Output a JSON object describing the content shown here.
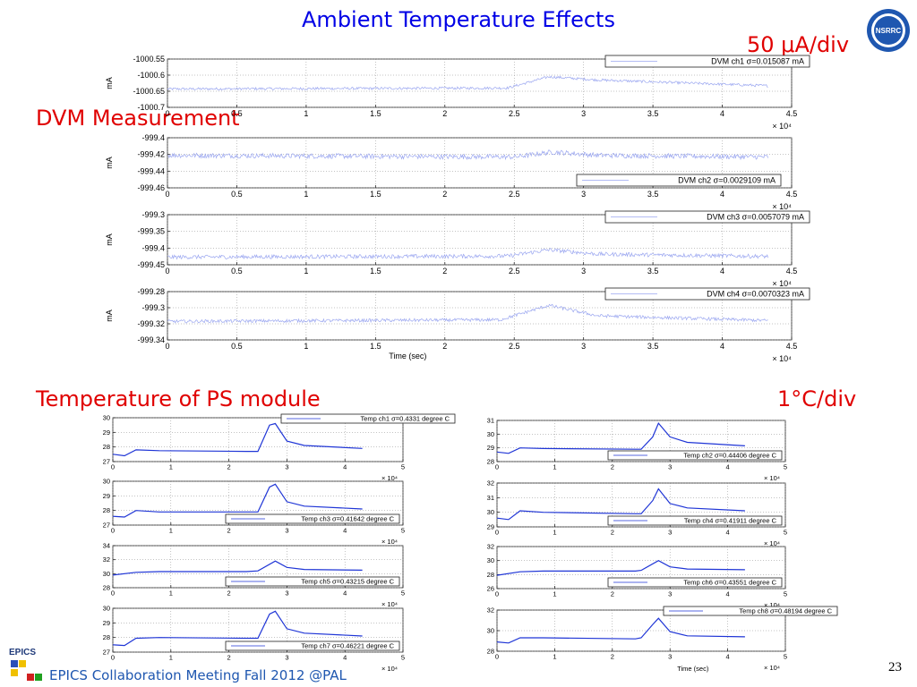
{
  "slide": {
    "title": "Ambient Temperature Effects",
    "dvm_heading": "DVM Measurement",
    "dvm_scale": "50 μA/div",
    "temp_heading": "Temperature of PS module",
    "temp_scale": "1°C/div",
    "footer": "EPICS Collaboration Meeting Fall 2012 @PAL",
    "page_number": "23",
    "epics_logo_text": "EPICS",
    "nsrrc_logo_text": "NSRRC"
  },
  "colors": {
    "title": "#0000e6",
    "heading": "#e00000",
    "dvm_trace": "#9aa6f0",
    "temp_trace": "#1f35d6",
    "footer": "#1f57b0"
  },
  "chart_data": [
    {
      "type": "line",
      "id": "dvm1",
      "ylabel": "mA",
      "xlabel": "",
      "x_multiplier": "× 10⁴",
      "xlim": [
        0,
        4.5
      ],
      "ylim": [
        -1000.7,
        -1000.55
      ],
      "yticks": [
        "-1000.55",
        "-1000.6",
        "-1000.65",
        "-1000.7"
      ],
      "xticks": [
        "0",
        "0.5",
        "1",
        "1.5",
        "2",
        "2.5",
        "3",
        "3.5",
        "4",
        "4.5"
      ],
      "legend": "DVM ch1 σ=0.015087 mA",
      "legend_pos": "top-right",
      "series": [
        {
          "base": -1000.643,
          "peak": 0.03,
          "noise": 0.004,
          "x": [
            0,
            4.33
          ],
          "trend": [
            [
              0,
              -1000.643
            ],
            [
              2.45,
              -1000.64
            ],
            [
              2.75,
              -1000.605
            ],
            [
              3.1,
              -1000.615
            ],
            [
              4.33,
              -1000.633
            ]
          ]
        }
      ]
    },
    {
      "type": "line",
      "id": "dvm2",
      "ylabel": "mA",
      "xlabel": "",
      "x_multiplier": "× 10⁴",
      "xlim": [
        0,
        4.5
      ],
      "ylim": [
        -999.46,
        -999.4
      ],
      "yticks": [
        "-999.4",
        "-999.42",
        "-999.44",
        "-999.46"
      ],
      "xticks": [
        "0",
        "0.5",
        "1",
        "1.5",
        "2",
        "2.5",
        "3",
        "3.5",
        "4",
        "4.5"
      ],
      "legend": "DVM ch2 σ=0.0029109 mA",
      "legend_pos": "bottom-right",
      "series": [
        {
          "noise": 0.003,
          "trend": [
            [
              0,
              -999.421
            ],
            [
              2.5,
              -999.423
            ],
            [
              2.78,
              -999.417
            ],
            [
              3.1,
              -999.421
            ],
            [
              4.33,
              -999.423
            ]
          ]
        }
      ]
    },
    {
      "type": "line",
      "id": "dvm3",
      "ylabel": "mA",
      "xlabel": "",
      "x_multiplier": "× 10⁴",
      "xlim": [
        0,
        4.5
      ],
      "ylim": [
        -999.45,
        -999.3
      ],
      "yticks": [
        "-999.3",
        "-999.35",
        "-999.4",
        "-999.45"
      ],
      "xticks": [
        "0",
        "0.5",
        "1",
        "1.5",
        "2",
        "2.5",
        "3",
        "3.5",
        "4",
        "4.5"
      ],
      "legend": "DVM ch3 σ=0.0057079 mA",
      "legend_pos": "top-right",
      "series": [
        {
          "noise": 0.006,
          "trend": [
            [
              0,
              -999.427
            ],
            [
              2.45,
              -999.424
            ],
            [
              2.75,
              -999.405
            ],
            [
              3.1,
              -999.418
            ],
            [
              4.33,
              -999.425
            ]
          ]
        }
      ]
    },
    {
      "type": "line",
      "id": "dvm4",
      "ylabel": "mA",
      "xlabel": "Time (sec)",
      "x_multiplier": "× 10⁴",
      "xlim": [
        0,
        4.5
      ],
      "ylim": [
        -999.34,
        -999.28
      ],
      "yticks": [
        "-999.28",
        "-999.3",
        "-999.32",
        "-999.34"
      ],
      "xticks": [
        "0",
        "0.5",
        "1",
        "1.5",
        "2",
        "2.5",
        "3",
        "3.5",
        "4",
        "4.5"
      ],
      "legend": "DVM ch4 σ=0.0070323 mA",
      "legend_pos": "top-right",
      "series": [
        {
          "noise": 0.002,
          "trend": [
            [
              0,
              -999.317
            ],
            [
              2.4,
              -999.315
            ],
            [
              2.75,
              -999.297
            ],
            [
              3.1,
              -999.31
            ],
            [
              4.33,
              -999.316
            ]
          ]
        }
      ]
    },
    {
      "type": "line",
      "id": "t1",
      "xlabel": "",
      "x_multiplier": "× 10⁴",
      "xlim": [
        0,
        5
      ],
      "ylim": [
        27,
        30
      ],
      "yticks": [
        "30",
        "29",
        "28",
        "27"
      ],
      "xticks": [
        "0",
        "1",
        "2",
        "3",
        "4",
        "5"
      ],
      "legend": "Temp ch1 σ=0.4331 degree C",
      "legend_pos": "top-right",
      "series": [
        {
          "trend": [
            [
              0,
              27.5
            ],
            [
              0.2,
              27.4
            ],
            [
              0.4,
              27.8
            ],
            [
              0.8,
              27.75
            ],
            [
              2.3,
              27.7
            ],
            [
              2.5,
              27.7
            ],
            [
              2.7,
              29.5
            ],
            [
              2.8,
              29.6
            ],
            [
              3.0,
              28.4
            ],
            [
              3.3,
              28.1
            ],
            [
              4.3,
              27.9
            ]
          ]
        }
      ]
    },
    {
      "type": "line",
      "id": "t2",
      "xlabel": "",
      "x_multiplier": "× 10⁴",
      "xlim": [
        0,
        5
      ],
      "ylim": [
        28,
        31
      ],
      "yticks": [
        "31",
        "30",
        "29",
        "28"
      ],
      "xticks": [
        "0",
        "1",
        "2",
        "3",
        "4",
        "5"
      ],
      "legend": "Temp ch2 σ=0.44406 degree C",
      "legend_pos": "bottom-right",
      "series": [
        {
          "trend": [
            [
              0,
              28.7
            ],
            [
              0.2,
              28.6
            ],
            [
              0.4,
              29.0
            ],
            [
              0.8,
              28.95
            ],
            [
              2.4,
              28.9
            ],
            [
              2.5,
              28.9
            ],
            [
              2.7,
              29.8
            ],
            [
              2.8,
              30.8
            ],
            [
              3.0,
              29.8
            ],
            [
              3.3,
              29.4
            ],
            [
              4.3,
              29.15
            ]
          ]
        }
      ]
    },
    {
      "type": "line",
      "id": "t3",
      "xlabel": "",
      "x_multiplier": "× 10⁴",
      "xlim": [
        0,
        5
      ],
      "ylim": [
        27,
        30
      ],
      "yticks": [
        "30",
        "29",
        "28",
        "27"
      ],
      "xticks": [
        "0",
        "1",
        "2",
        "3",
        "4",
        "5"
      ],
      "legend": "Temp ch3 σ=0.41642 degree C",
      "legend_pos": "bottom-right",
      "series": [
        {
          "trend": [
            [
              0,
              27.6
            ],
            [
              0.2,
              27.55
            ],
            [
              0.4,
              28.0
            ],
            [
              0.8,
              27.9
            ],
            [
              2.3,
              27.9
            ],
            [
              2.5,
              27.9
            ],
            [
              2.7,
              29.6
            ],
            [
              2.8,
              29.8
            ],
            [
              3.0,
              28.6
            ],
            [
              3.3,
              28.3
            ],
            [
              4.3,
              28.1
            ]
          ]
        }
      ]
    },
    {
      "type": "line",
      "id": "t4",
      "xlabel": "",
      "x_multiplier": "× 10⁴",
      "xlim": [
        0,
        5
      ],
      "ylim": [
        29,
        32
      ],
      "yticks": [
        "32",
        "31",
        "30",
        "29"
      ],
      "xticks": [
        "0",
        "1",
        "2",
        "3",
        "4",
        "5"
      ],
      "legend": "Temp ch4 σ=0.41911 degree C",
      "legend_pos": "bottom-right",
      "series": [
        {
          "trend": [
            [
              0,
              29.6
            ],
            [
              0.2,
              29.5
            ],
            [
              0.4,
              30.1
            ],
            [
              0.8,
              30.0
            ],
            [
              2.4,
              29.9
            ],
            [
              2.5,
              29.9
            ],
            [
              2.7,
              30.8
            ],
            [
              2.8,
              31.6
            ],
            [
              3.0,
              30.6
            ],
            [
              3.3,
              30.3
            ],
            [
              4.3,
              30.1
            ]
          ]
        }
      ]
    },
    {
      "type": "line",
      "id": "t5",
      "xlabel": "",
      "x_multiplier": "× 10⁴",
      "xlim": [
        0,
        5
      ],
      "ylim": [
        28,
        34
      ],
      "yticks": [
        "34",
        "32",
        "30",
        "28"
      ],
      "xticks": [
        "0",
        "1",
        "2",
        "3",
        "4",
        "5"
      ],
      "legend": "Temp ch5 σ=0.43215 degree C",
      "legend_pos": "bottom-right",
      "series": [
        {
          "trend": [
            [
              0,
              29.8
            ],
            [
              0.4,
              30.2
            ],
            [
              0.8,
              30.3
            ],
            [
              2.3,
              30.3
            ],
            [
              2.5,
              30.4
            ],
            [
              2.8,
              31.8
            ],
            [
              3.0,
              30.9
            ],
            [
              3.3,
              30.6
            ],
            [
              4.3,
              30.5
            ]
          ]
        }
      ]
    },
    {
      "type": "line",
      "id": "t6",
      "xlabel": "",
      "x_multiplier": "× 10⁴",
      "xlim": [
        0,
        5
      ],
      "ylim": [
        26,
        32
      ],
      "yticks": [
        "32",
        "30",
        "28",
        "26"
      ],
      "xticks": [
        "0",
        "1",
        "2",
        "3",
        "4",
        "5"
      ],
      "legend": "Temp ch6 σ=0.43551 degree C",
      "legend_pos": "bottom-right",
      "series": [
        {
          "trend": [
            [
              0,
              27.9
            ],
            [
              0.4,
              28.4
            ],
            [
              0.8,
              28.5
            ],
            [
              2.4,
              28.5
            ],
            [
              2.5,
              28.6
            ],
            [
              2.8,
              30.0
            ],
            [
              3.0,
              29.1
            ],
            [
              3.3,
              28.8
            ],
            [
              4.3,
              28.7
            ]
          ]
        }
      ]
    },
    {
      "type": "line",
      "id": "t7",
      "xlabel": "",
      "x_multiplier": "× 10⁴",
      "xlim": [
        0,
        5
      ],
      "ylim": [
        27,
        30
      ],
      "yticks": [
        "30",
        "29",
        "28",
        "27"
      ],
      "xticks": [
        "0",
        "1",
        "2",
        "3",
        "4",
        "5"
      ],
      "legend": "Temp ch7 σ=0.46221 degree C",
      "legend_pos": "bottom-right",
      "series": [
        {
          "trend": [
            [
              0,
              27.5
            ],
            [
              0.2,
              27.45
            ],
            [
              0.4,
              27.95
            ],
            [
              0.8,
              28.0
            ],
            [
              2.3,
              27.95
            ],
            [
              2.5,
              27.95
            ],
            [
              2.7,
              29.6
            ],
            [
              2.8,
              29.8
            ],
            [
              3.0,
              28.6
            ],
            [
              3.3,
              28.3
            ],
            [
              4.3,
              28.1
            ]
          ]
        }
      ]
    },
    {
      "type": "line",
      "id": "t8",
      "xlabel": "Time (sec)",
      "x_multiplier": "× 10⁴",
      "xlim": [
        0,
        5
      ],
      "ylim": [
        28,
        32
      ],
      "yticks": [
        "32",
        "30",
        "28"
      ],
      "xticks": [
        "0",
        "1",
        "2",
        "3",
        "4",
        "5"
      ],
      "legend": "Temp ch8 σ=0.48194 degree C",
      "legend_pos": "top-right",
      "series": [
        {
          "trend": [
            [
              0,
              28.9
            ],
            [
              0.2,
              28.8
            ],
            [
              0.4,
              29.3
            ],
            [
              0.8,
              29.3
            ],
            [
              2.4,
              29.2
            ],
            [
              2.5,
              29.3
            ],
            [
              2.7,
              30.6
            ],
            [
              2.8,
              31.2
            ],
            [
              3.0,
              29.9
            ],
            [
              3.3,
              29.5
            ],
            [
              4.3,
              29.4
            ]
          ]
        }
      ]
    }
  ]
}
